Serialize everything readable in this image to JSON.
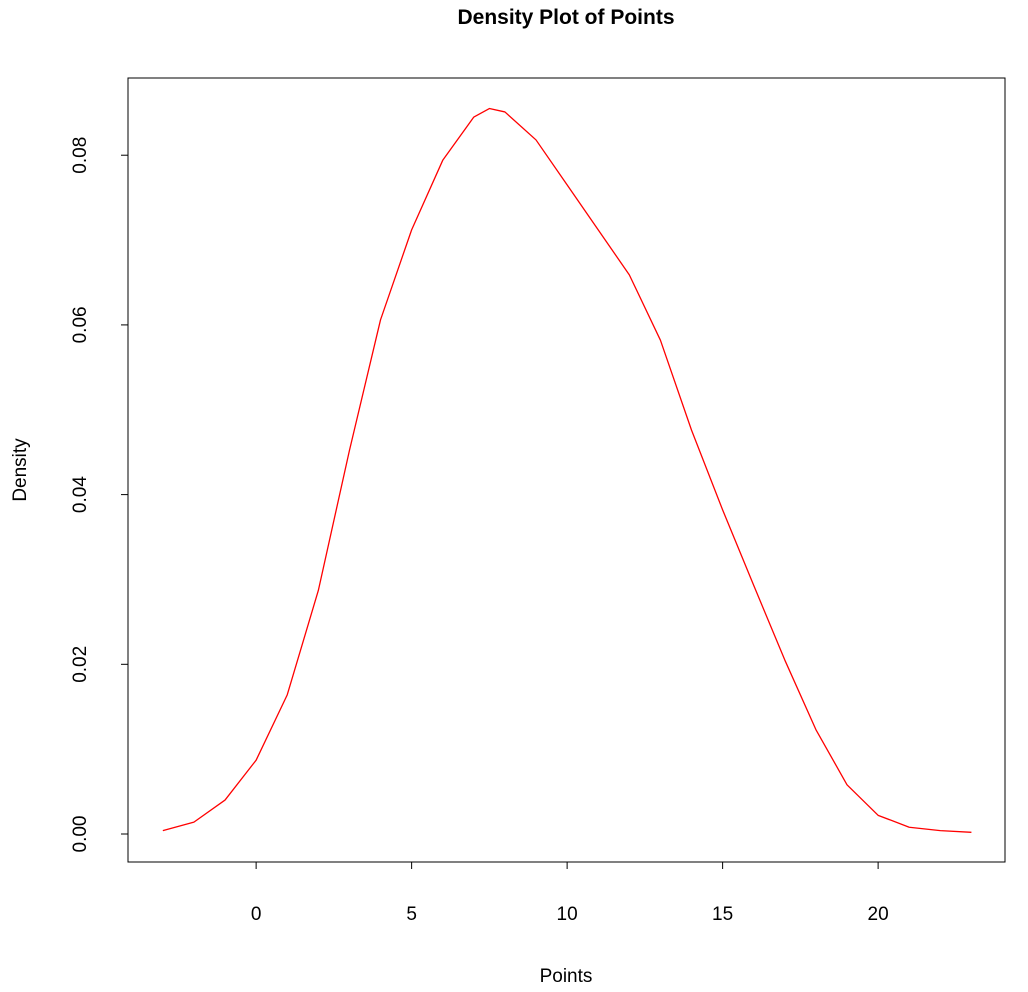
{
  "chart_data": {
    "type": "line",
    "title": "Density Plot of Points",
    "x_label": "Points",
    "y_label": "Density",
    "x": [
      -3,
      -2,
      -1,
      0,
      1,
      2,
      3,
      4,
      5,
      6,
      7,
      7.5,
      8,
      9,
      10,
      11,
      12,
      13,
      14,
      15,
      16,
      17,
      18,
      19,
      20,
      21,
      22,
      23
    ],
    "values": [
      0.0004,
      0.0014,
      0.004,
      0.0087,
      0.0164,
      0.0287,
      0.0452,
      0.0606,
      0.0712,
      0.0794,
      0.0845,
      0.0855,
      0.0851,
      0.0818,
      0.0765,
      0.0712,
      0.0659,
      0.0582,
      0.0476,
      0.0382,
      0.0293,
      0.0205,
      0.0123,
      0.0058,
      0.0022,
      0.0008,
      0.0004,
      0.0002
    ],
    "color": "#ff0000",
    "xlim": [
      -4.12,
      24.08
    ],
    "xticks": [
      0,
      5,
      10,
      15,
      20
    ],
    "ylim": [
      -0.0033,
      0.0891
    ],
    "yticks": [
      {
        "value": 0,
        "label": "0.00"
      },
      {
        "value": 0.02,
        "label": "0.02"
      },
      {
        "value": 0.04,
        "label": "0.04"
      },
      {
        "value": 0.06,
        "label": "0.06"
      },
      {
        "value": 0.08,
        "label": "0.08"
      }
    ]
  }
}
